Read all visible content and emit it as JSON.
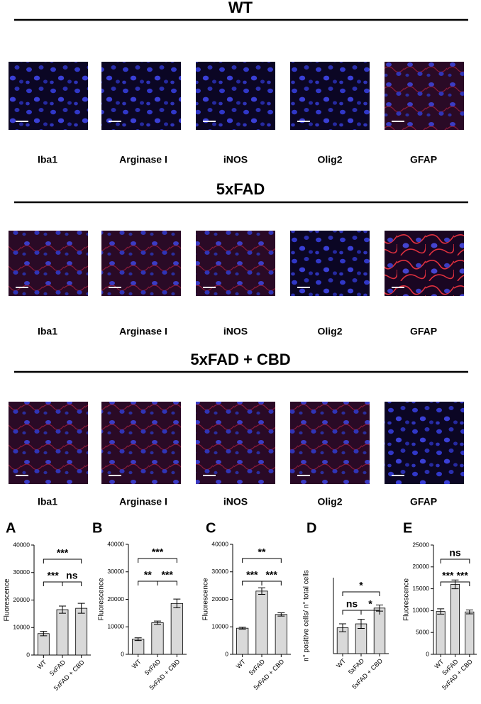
{
  "sections": [
    {
      "title": "WT",
      "panels": [
        "Iba1",
        "Arginase I",
        "iNOS",
        "Olig2",
        "GFAP"
      ]
    },
    {
      "title": "5xFAD",
      "panels": [
        "Iba1",
        "Arginase I",
        "iNOS",
        "Olig2",
        "GFAP"
      ]
    },
    {
      "title": "5xFAD + CBD",
      "panels": [
        "Iba1",
        "Arginase I",
        "iNOS",
        "Olig2",
        "GFAP"
      ]
    }
  ],
  "chart_data": [
    {
      "type": "bar",
      "panel": "A",
      "y_label": "Fluorescence",
      "categories": [
        "WT",
        "5xFAD",
        "5xFAD + CBD"
      ],
      "values": [
        7800,
        16500,
        17000
      ],
      "errors": [
        800,
        1300,
        1800
      ],
      "color": "#d9d9d9",
      "ylim": [
        0,
        40000
      ],
      "yticks": [
        0,
        10000,
        20000,
        30000,
        40000
      ],
      "comparisons": [
        {
          "pair": [
            0,
            1
          ],
          "label": "***"
        },
        {
          "pair": [
            1,
            2
          ],
          "label": "ns"
        },
        {
          "pair": [
            0,
            2
          ],
          "label": "***"
        }
      ]
    },
    {
      "type": "bar",
      "panel": "B",
      "y_label": "Fluorescence",
      "categories": [
        "WT",
        "5xFAD",
        "5xFAD + CBD"
      ],
      "values": [
        5500,
        11500,
        18500
      ],
      "errors": [
        500,
        600,
        1600
      ],
      "color": "#d9d9d9",
      "ylim": [
        0,
        40000
      ],
      "yticks": [
        0,
        10000,
        20000,
        30000,
        40000
      ],
      "comparisons": [
        {
          "pair": [
            0,
            1
          ],
          "label": "**"
        },
        {
          "pair": [
            1,
            2
          ],
          "label": "***"
        },
        {
          "pair": [
            0,
            2
          ],
          "label": "***"
        }
      ]
    },
    {
      "type": "bar",
      "panel": "C",
      "y_label": "Fluorescence",
      "categories": [
        "WT",
        "5xFAD",
        "5xFAD + CBD"
      ],
      "values": [
        9500,
        23000,
        14500
      ],
      "errors": [
        350,
        1200,
        600
      ],
      "color": "#d9d9d9",
      "ylim": [
        0,
        40000
      ],
      "yticks": [
        0,
        10000,
        20000,
        30000,
        40000
      ],
      "comparisons": [
        {
          "pair": [
            0,
            1
          ],
          "label": "***"
        },
        {
          "pair": [
            1,
            2
          ],
          "label": "***"
        },
        {
          "pair": [
            0,
            2
          ],
          "label": "**"
        }
      ]
    },
    {
      "type": "bar",
      "panel": "D",
      "y_label": "n° positive cells/ n° total cells",
      "categories": [
        "WT",
        "5xFAD",
        "5xFAD + CBD"
      ],
      "values": [
        8.5,
        9.8,
        15
      ],
      "errors": [
        1.3,
        1.5,
        1.0
      ],
      "color": "#d9d9d9",
      "ylim": [
        0,
        25
      ],
      "comparisons": [
        {
          "pair": [
            0,
            1
          ],
          "label": "ns"
        },
        {
          "pair": [
            1,
            2
          ],
          "label": "*"
        },
        {
          "pair": [
            0,
            2
          ],
          "label": "*"
        }
      ]
    },
    {
      "type": "bar",
      "panel": "E",
      "y_label": "Fluorescence",
      "categories": [
        "WT",
        "5xFAD",
        "5xFAD + CBD"
      ],
      "values": [
        9800,
        16000,
        9700
      ],
      "errors": [
        600,
        1000,
        450
      ],
      "color": "#d9d9d9",
      "ylim": [
        0,
        25000
      ],
      "yticks": [
        0,
        5000,
        10000,
        15000,
        20000,
        25000
      ],
      "comparisons": [
        {
          "pair": [
            0,
            1
          ],
          "label": "***"
        },
        {
          "pair": [
            1,
            2
          ],
          "label": "***"
        },
        {
          "pair": [
            0,
            2
          ],
          "label": "ns"
        }
      ]
    }
  ]
}
